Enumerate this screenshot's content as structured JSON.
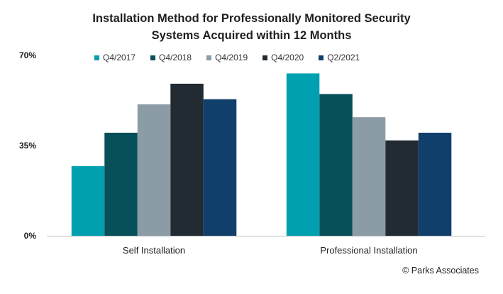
{
  "chart_data": {
    "type": "bar",
    "title_lines": [
      "Installation Method for Professionally Monitored Security",
      "Systems Acquired within 12 Months"
    ],
    "categories": [
      "Self Installation",
      "Professional Installation"
    ],
    "series": [
      {
        "name": "Q4/2017",
        "color": "#00a0b0",
        "values": [
          27,
          63
        ]
      },
      {
        "name": "Q4/2018",
        "color": "#075059",
        "values": [
          40,
          55
        ]
      },
      {
        "name": "Q4/2019",
        "color": "#8c9ca7",
        "values": [
          51,
          46
        ]
      },
      {
        "name": "Q4/2020",
        "color": "#222a32",
        "values": [
          59,
          37
        ]
      },
      {
        "name": "Q2/2021",
        "color": "#113f6b",
        "values": [
          53,
          40
        ]
      }
    ],
    "yticks": [
      {
        "value": 0,
        "label": "0%"
      },
      {
        "value": 35,
        "label": "35%"
      },
      {
        "value": 70,
        "label": "70%"
      }
    ],
    "ylim": [
      0,
      70
    ],
    "grid": false,
    "legend_position": "top"
  },
  "footer": {
    "copyright": "© Parks Associates"
  }
}
